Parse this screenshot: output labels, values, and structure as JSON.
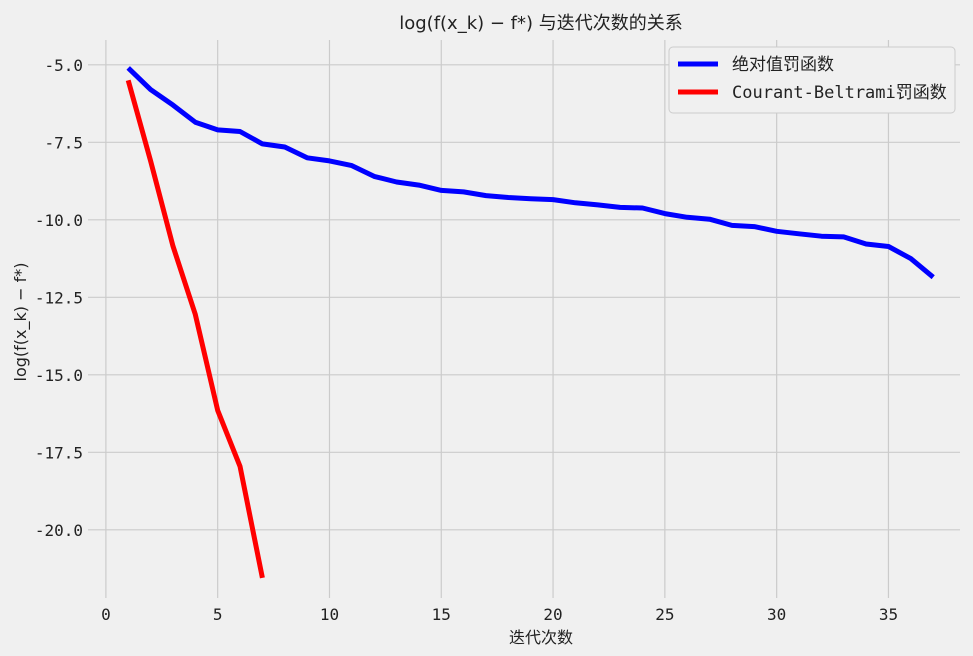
{
  "chart_data": {
    "type": "line",
    "title": "log(f(x_k) − f*) 与迭代次数的关系",
    "xlabel": "迭代次数",
    "ylabel": "log(f(x_k) − f*)",
    "xlim": [
      -0.8,
      38.2
    ],
    "ylim": [
      -22.2,
      -4.2
    ],
    "x_ticks": [
      0,
      5,
      10,
      15,
      20,
      25,
      30,
      35
    ],
    "y_ticks": [
      -5.0,
      -7.5,
      -10.0,
      -12.5,
      -15.0,
      -17.5,
      -20.0
    ],
    "x_tick_labels": [
      "0",
      "5",
      "10",
      "15",
      "20",
      "25",
      "30",
      "35"
    ],
    "y_tick_labels": [
      "-5.0",
      "-7.5",
      "-10.0",
      "-12.5",
      "-15.0",
      "-17.5",
      "-20.0"
    ],
    "grid": true,
    "legend_position": "top-right",
    "series": [
      {
        "name": "绝对值罚函数",
        "color": "#0000ff",
        "x": [
          1,
          2,
          3,
          4,
          5,
          6,
          7,
          8,
          9,
          10,
          11,
          12,
          13,
          14,
          15,
          16,
          17,
          18,
          19,
          20,
          21,
          22,
          23,
          24,
          25,
          26,
          27,
          28,
          29,
          30,
          31,
          32,
          33,
          34,
          35,
          36,
          37
        ],
        "y": [
          -5.1,
          -5.8,
          -6.3,
          -6.85,
          -7.1,
          -7.15,
          -7.55,
          -7.65,
          -8.0,
          -8.1,
          -8.25,
          -8.6,
          -8.78,
          -8.88,
          -9.05,
          -9.1,
          -9.22,
          -9.28,
          -9.32,
          -9.35,
          -9.45,
          -9.52,
          -9.6,
          -9.62,
          -9.8,
          -9.92,
          -9.98,
          -10.18,
          -10.22,
          -10.37,
          -10.45,
          -10.53,
          -10.55,
          -10.78,
          -10.86,
          -11.25,
          -11.85
        ]
      },
      {
        "name": "Courant-Beltrami罚函数",
        "color": "#ff0000",
        "x": [
          1,
          2,
          3,
          4,
          5,
          6,
          7
        ],
        "y": [
          -5.5,
          -8.1,
          -10.85,
          -13.05,
          -16.15,
          -17.95,
          -21.55
        ]
      }
    ]
  }
}
